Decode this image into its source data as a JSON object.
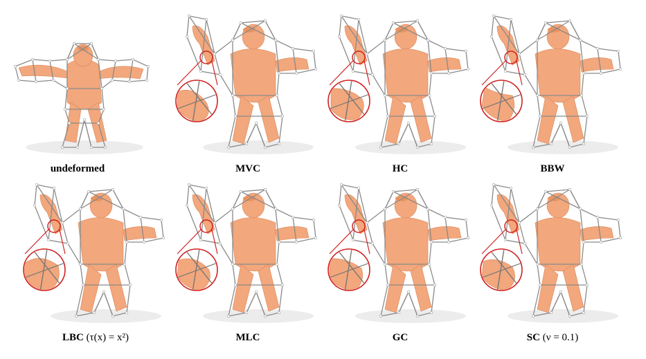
{
  "figure": {
    "panels": [
      {
        "label_bold": "undeformed",
        "label_rest": "",
        "has_zoom": false
      },
      {
        "label_bold": "MVC",
        "label_rest": "",
        "has_zoom": true
      },
      {
        "label_bold": "HC",
        "label_rest": "",
        "has_zoom": true
      },
      {
        "label_bold": "BBW",
        "label_rest": "",
        "has_zoom": true
      },
      {
        "label_bold": "LBC",
        "label_rest": " (τ(x) = x²)",
        "has_zoom": true
      },
      {
        "label_bold": "MLC",
        "label_rest": "",
        "has_zoom": true
      },
      {
        "label_bold": "GC",
        "label_rest": "",
        "has_zoom": true
      },
      {
        "label_bold": "SC",
        "label_rest": " (ν = 0.1)",
        "has_zoom": true
      }
    ],
    "colors": {
      "skin": "#f2a77c",
      "cage": "#8a8a8a",
      "zoom_highlight": "#d0201f",
      "background": "#ffffff"
    }
  }
}
